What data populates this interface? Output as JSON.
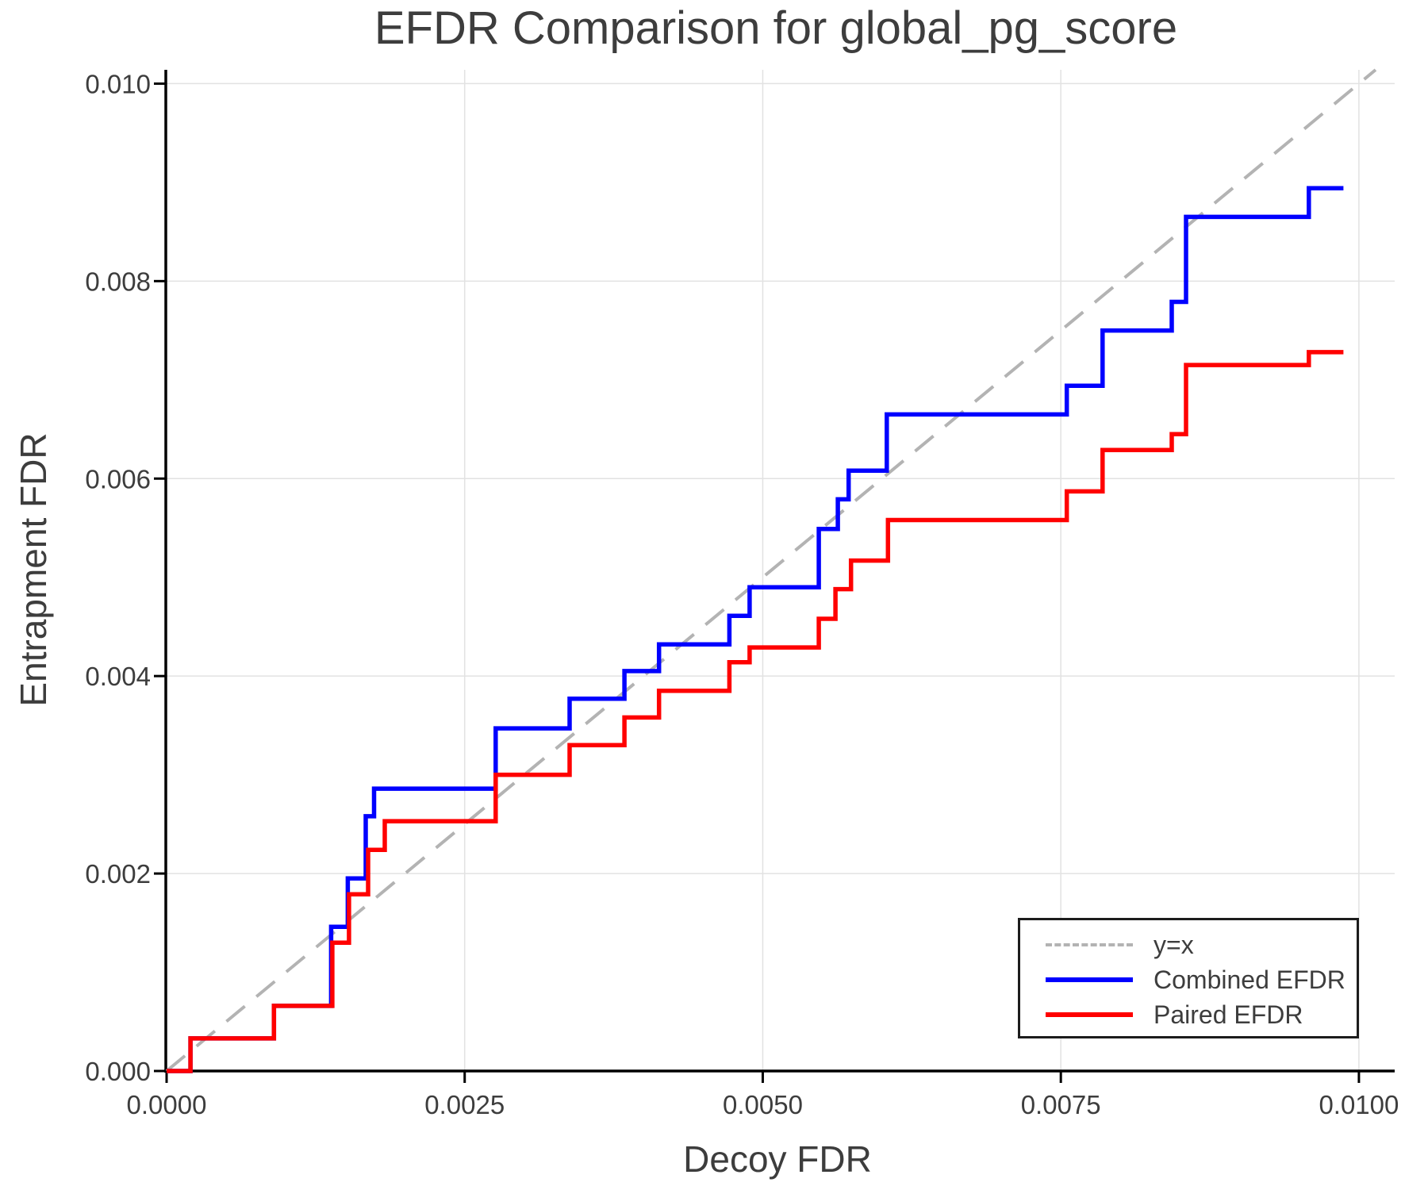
{
  "title": "EFDR Comparison for global_pg_score",
  "axes": {
    "xlabel": "Decoy FDR",
    "ylabel": "Entrapment FDR"
  },
  "legend": {
    "position": "lower right",
    "items": [
      {
        "label": "y=x",
        "color": "#b3b3b3",
        "style": "dashed"
      },
      {
        "label": "Combined EFDR",
        "color": "#0000ff",
        "style": "solid"
      },
      {
        "label": "Paired EFDR",
        "color": "#ff0000",
        "style": "solid"
      }
    ]
  },
  "chart_data": {
    "type": "line",
    "subtype": "step-post",
    "title": "EFDR Comparison for global_pg_score",
    "xlabel": "Decoy FDR",
    "ylabel": "Entrapment FDR",
    "xlim": [
      0,
      0.0103
    ],
    "ylim": [
      0,
      0.01014
    ],
    "x_tick_values": [
      0.0,
      0.0025,
      0.005,
      0.0075,
      0.01
    ],
    "x_tick_labels": [
      "0.0000",
      "0.0025",
      "0.0050",
      "0.0075",
      "0.0100"
    ],
    "y_tick_values": [
      0.0,
      0.002,
      0.004,
      0.006,
      0.008,
      0.01
    ],
    "y_tick_labels": [
      "0.000",
      "0.002",
      "0.004",
      "0.006",
      "0.008",
      "0.010"
    ],
    "grid": true,
    "grid_color": "#e2e2e2",
    "spine_color": "#000000",
    "tick_text_color": "#3d3d3d",
    "reference_line": {
      "name": "y=x",
      "from": [
        0,
        0
      ],
      "to": [
        0.01014,
        0.01014
      ],
      "color": "#b3b3b3",
      "dash": true
    },
    "series": [
      {
        "name": "Combined EFDR",
        "color": "#0000ff",
        "points": [
          [
            0,
            0
          ],
          [
            0.0002,
            0.00033
          ],
          [
            0.0009,
            0.00066
          ],
          [
            0.00138,
            0.00146
          ],
          [
            0.00152,
            0.00195
          ],
          [
            0.00167,
            0.00258
          ],
          [
            0.00174,
            0.00286
          ],
          [
            0.00276,
            0.00347
          ],
          [
            0.00338,
            0.00377
          ],
          [
            0.00384,
            0.00405
          ],
          [
            0.00413,
            0.00432
          ],
          [
            0.00472,
            0.00461
          ],
          [
            0.00489,
            0.0049
          ],
          [
            0.00547,
            0.00549
          ],
          [
            0.00563,
            0.00579
          ],
          [
            0.00572,
            0.00608
          ],
          [
            0.00604,
            0.00665
          ],
          [
            0.00755,
            0.00694
          ],
          [
            0.00785,
            0.0075
          ],
          [
            0.00843,
            0.00779
          ],
          [
            0.00855,
            0.00865
          ],
          [
            0.00958,
            0.00894
          ],
          [
            0.00987,
            0.00894
          ]
        ]
      },
      {
        "name": "Paired EFDR",
        "color": "#ff0000",
        "points": [
          [
            0,
            0
          ],
          [
            0.0002,
            0.00033
          ],
          [
            0.0009,
            0.00066
          ],
          [
            0.00139,
            0.0013
          ],
          [
            0.00153,
            0.00179
          ],
          [
            0.00169,
            0.00224
          ],
          [
            0.00183,
            0.00253
          ],
          [
            0.00276,
            0.003
          ],
          [
            0.00338,
            0.0033
          ],
          [
            0.00384,
            0.00358
          ],
          [
            0.00413,
            0.00385
          ],
          [
            0.00472,
            0.00414
          ],
          [
            0.00489,
            0.00429
          ],
          [
            0.00547,
            0.00458
          ],
          [
            0.00561,
            0.00488
          ],
          [
            0.00574,
            0.00517
          ],
          [
            0.00605,
            0.00558
          ],
          [
            0.00755,
            0.00587
          ],
          [
            0.00785,
            0.00629
          ],
          [
            0.00843,
            0.00645
          ],
          [
            0.00855,
            0.00715
          ],
          [
            0.00958,
            0.00728
          ],
          [
            0.00987,
            0.00728
          ]
        ]
      }
    ]
  }
}
